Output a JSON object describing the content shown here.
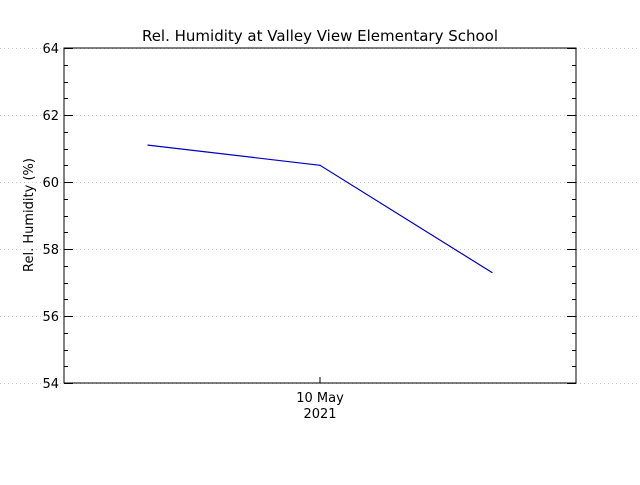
{
  "chart_data": {
    "type": "line",
    "title": "Rel. Humidity at Valley View Elementary School",
    "ylabel": "Rel. Humidity (%)",
    "xlabel": "",
    "ylim": [
      54,
      64
    ],
    "yticks": [
      54,
      56,
      58,
      60,
      62,
      64
    ],
    "y_minor_step": 0.5,
    "grid": true,
    "x_tick_label": {
      "line1": "10 May",
      "line2": "2021"
    },
    "series": [
      {
        "color": "#0000c0",
        "points": [
          {
            "x": "2021-05-09 12:00",
            "y": 61.1
          },
          {
            "x": "2021-05-10 00:00",
            "y": 60.5
          },
          {
            "x": "2021-05-10 12:00",
            "y": 57.3
          }
        ]
      }
    ]
  }
}
